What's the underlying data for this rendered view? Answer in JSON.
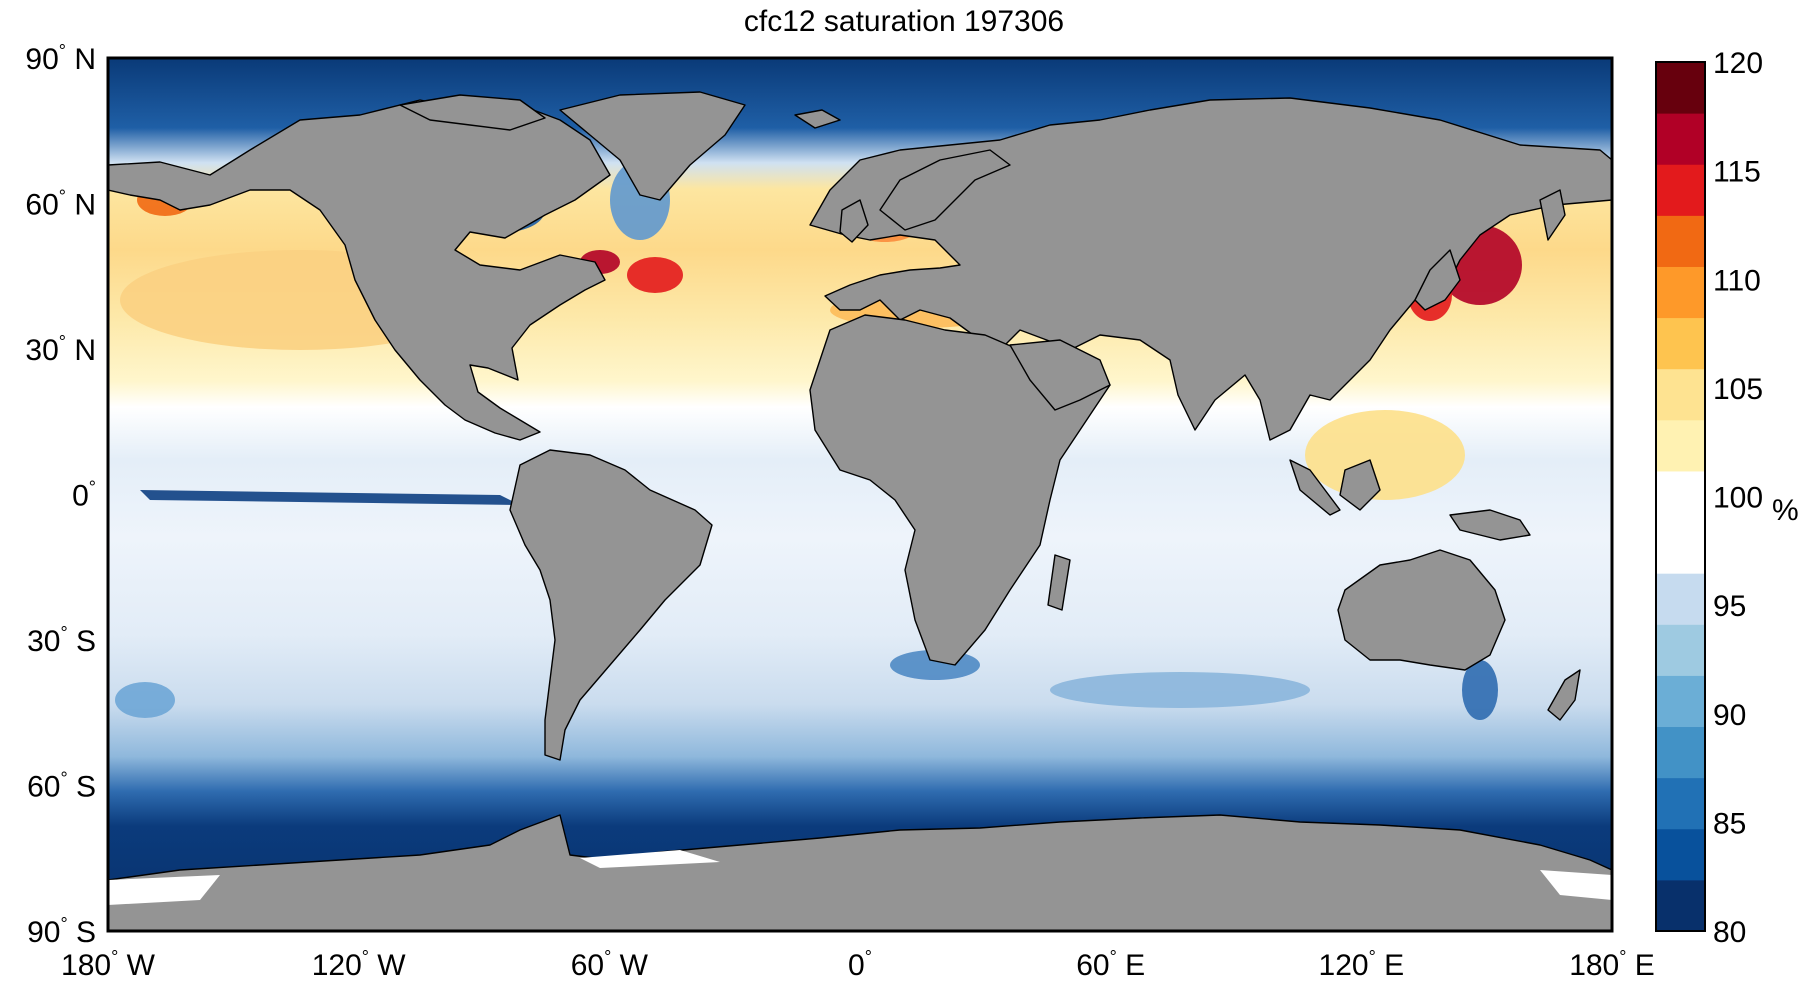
{
  "title": "cfc12 saturation 197306",
  "lat_ticks": [
    {
      "value": 90,
      "deg": "90",
      "hemi": "N"
    },
    {
      "value": 60,
      "deg": "60",
      "hemi": "N"
    },
    {
      "value": 30,
      "deg": "30",
      "hemi": "N"
    },
    {
      "value": 0,
      "deg": "0",
      "hemi": ""
    },
    {
      "value": -30,
      "deg": "30",
      "hemi": "S"
    },
    {
      "value": -60,
      "deg": "60",
      "hemi": "S"
    },
    {
      "value": -90,
      "deg": "90",
      "hemi": "S"
    }
  ],
  "lon_ticks": [
    {
      "value": -180,
      "deg": "180",
      "hemi": "W"
    },
    {
      "value": -120,
      "deg": "120",
      "hemi": "W"
    },
    {
      "value": -60,
      "deg": "60",
      "hemi": "W"
    },
    {
      "value": 0,
      "deg": "0",
      "hemi": ""
    },
    {
      "value": 60,
      "deg": "60",
      "hemi": "E"
    },
    {
      "value": 120,
      "deg": "120",
      "hemi": "E"
    },
    {
      "value": 180,
      "deg": "180",
      "hemi": "E"
    }
  ],
  "colorbar": {
    "min": 80,
    "max": 120,
    "ticks": [
      "80",
      "85",
      "90",
      "95",
      "100",
      "105",
      "110",
      "115",
      "120"
    ],
    "unit": "%",
    "colors": [
      "#08306b",
      "#08519c",
      "#2171b5",
      "#4292c6",
      "#6baed6",
      "#9ecae1",
      "#c6dbef",
      "#ffffff",
      "#ffffff",
      "#fff2b2",
      "#fee391",
      "#fec44f",
      "#fe9929",
      "#f16913",
      "#e31a1c",
      "#b10026",
      "#67000d"
    ]
  },
  "colors": {
    "land": "#949494",
    "coastline": "#000000",
    "ice_edge": "#ffffff"
  }
}
